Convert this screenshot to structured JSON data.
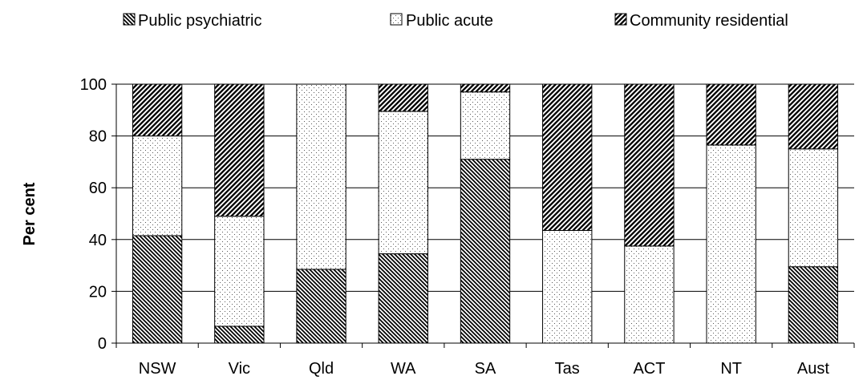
{
  "chart_data": {
    "type": "bar",
    "stacked": true,
    "categories": [
      "NSW",
      "Vic",
      "Qld",
      "WA",
      "SA",
      "Tas",
      "ACT",
      "NT",
      "Aust"
    ],
    "series": [
      {
        "name": "Public psychiatric",
        "values": [
          41.5,
          6.5,
          28.5,
          34.5,
          71,
          0,
          0,
          0,
          29.5
        ],
        "pattern": "diag-down-dense"
      },
      {
        "name": "Public acute",
        "values": [
          38.5,
          42.5,
          71.5,
          55,
          26,
          43.5,
          37.5,
          76.5,
          45.5
        ],
        "pattern": "dots"
      },
      {
        "name": "Community residential",
        "values": [
          20,
          51,
          0,
          10.5,
          3,
          56.5,
          62.5,
          23.5,
          25
        ],
        "pattern": "diag-up-dense"
      }
    ],
    "xlabel": "",
    "ylabel": "Per cent",
    "ylim": [
      0,
      100
    ],
    "yticks": [
      0,
      20,
      40,
      60,
      80,
      100
    ],
    "grid": true,
    "legend_position": "top"
  }
}
